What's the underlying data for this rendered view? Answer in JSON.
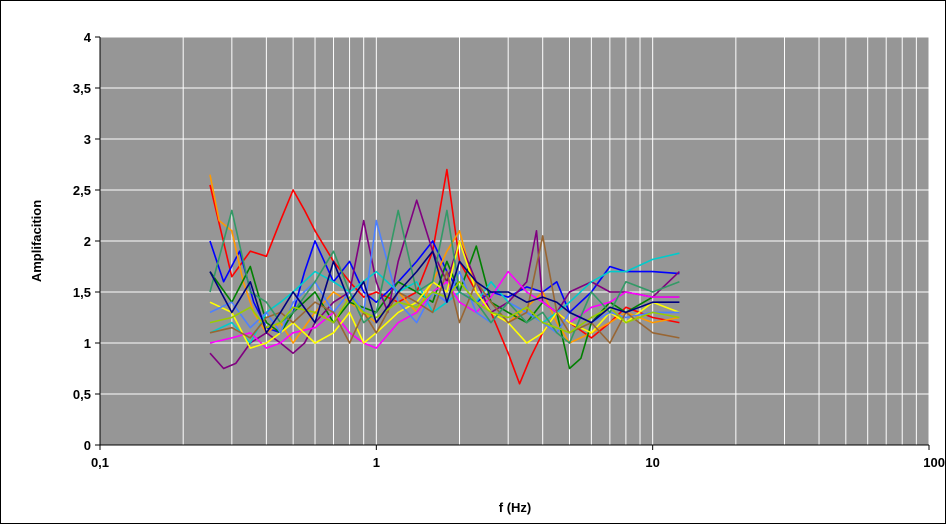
{
  "chart_data": {
    "type": "line",
    "title": "",
    "xlabel": "f (Hz)",
    "ylabel": "Amplifacition",
    "x_scale": "log",
    "xlim": [
      0.1,
      100
    ],
    "ylim": [
      0,
      4
    ],
    "x_ticks": [
      {
        "value": 0.1,
        "label": "0,1"
      },
      {
        "value": 1,
        "label": "1"
      },
      {
        "value": 10,
        "label": "10"
      },
      {
        "value": 100,
        "label": "100"
      }
    ],
    "y_ticks": [
      {
        "value": 0,
        "label": "0"
      },
      {
        "value": 0.5,
        "label": "0,5"
      },
      {
        "value": 1,
        "label": "1"
      },
      {
        "value": 1.5,
        "label": "1,5"
      },
      {
        "value": 2,
        "label": "2"
      },
      {
        "value": 2.5,
        "label": "2,5"
      },
      {
        "value": 3,
        "label": "3"
      },
      {
        "value": 3.5,
        "label": "3,5"
      },
      {
        "value": 4,
        "label": "4"
      }
    ],
    "grid": true,
    "plot_background": "#969696",
    "grid_color": "#ffffff",
    "legend": "none",
    "series": [
      {
        "color": "#ff0000",
        "x": [
          0.25,
          0.3,
          0.35,
          0.4,
          0.45,
          0.5,
          0.55,
          0.6,
          0.7,
          0.8,
          0.9,
          1,
          1.2,
          1.4,
          1.6,
          1.8,
          2,
          2.3,
          2.6,
          3,
          3.3,
          3.6,
          4,
          4.5,
          5,
          6,
          7,
          8,
          10,
          12.5
        ],
        "y": [
          2.55,
          1.65,
          1.9,
          1.85,
          2.2,
          2.5,
          2.3,
          2.1,
          1.8,
          1.6,
          1.45,
          1.5,
          1.4,
          1.5,
          1.9,
          2.7,
          1.8,
          1.5,
          1.3,
          0.9,
          0.6,
          0.85,
          1.1,
          1.3,
          1.2,
          1.05,
          1.2,
          1.35,
          1.25,
          1.2
        ]
      },
      {
        "color": "#0000ff",
        "x": [
          0.25,
          0.28,
          0.32,
          0.36,
          0.4,
          0.45,
          0.5,
          0.55,
          0.6,
          0.7,
          0.8,
          0.9,
          1,
          1.2,
          1.4,
          1.6,
          1.8,
          2,
          2.3,
          2.6,
          3,
          3.5,
          4,
          4.5,
          5,
          6,
          7,
          8,
          10,
          12.5
        ],
        "y": [
          2.0,
          1.6,
          1.9,
          1.4,
          1.15,
          1.1,
          1.3,
          1.7,
          2.0,
          1.6,
          1.8,
          1.5,
          1.4,
          1.6,
          1.8,
          2.0,
          1.7,
          1.5,
          1.4,
          1.5,
          1.45,
          1.55,
          1.5,
          1.6,
          1.3,
          1.5,
          1.75,
          1.7,
          1.7,
          1.68
        ]
      },
      {
        "color": "#ff9900",
        "x": [
          0.25,
          0.27,
          0.3,
          0.33,
          0.36,
          0.4,
          0.45,
          0.5,
          0.6,
          0.7,
          0.8,
          1,
          1.2,
          1.4,
          1.6,
          1.8,
          2,
          2.3,
          2.6,
          3,
          3.5,
          4,
          4.5,
          5,
          6,
          7,
          8,
          10,
          12.5
        ],
        "y": [
          2.65,
          2.2,
          2.1,
          1.6,
          1.3,
          1.1,
          1.2,
          1.0,
          1.3,
          1.5,
          1.4,
          1.2,
          1.5,
          1.3,
          1.6,
          1.9,
          2.1,
          1.5,
          1.3,
          1.2,
          1.35,
          1.5,
          1.2,
          1.0,
          1.1,
          1.2,
          1.3,
          1.2,
          1.25
        ]
      },
      {
        "color": "#008000",
        "x": [
          0.25,
          0.3,
          0.35,
          0.4,
          0.45,
          0.5,
          0.6,
          0.7,
          0.8,
          1,
          1.2,
          1.4,
          1.6,
          1.8,
          2,
          2.3,
          2.6,
          3,
          3.5,
          4,
          4.5,
          5,
          5.5,
          6,
          7,
          8,
          10,
          12.5
        ],
        "y": [
          1.7,
          1.4,
          1.75,
          1.2,
          1.1,
          1.3,
          1.5,
          1.2,
          1.4,
          1.3,
          1.6,
          1.5,
          1.4,
          1.8,
          1.5,
          1.95,
          1.4,
          1.3,
          1.2,
          1.4,
          1.3,
          0.75,
          0.85,
          1.2,
          1.4,
          1.3,
          1.45,
          1.45
        ]
      },
      {
        "color": "#800080",
        "x": [
          0.25,
          0.28,
          0.31,
          0.35,
          0.4,
          0.45,
          0.5,
          0.55,
          0.6,
          0.7,
          0.8,
          0.9,
          1,
          1.1,
          1.2,
          1.4,
          1.6,
          1.8,
          2,
          2.3,
          2.6,
          3,
          3.5,
          3.8,
          4,
          4.5,
          5,
          6,
          7,
          8,
          10,
          12.5
        ],
        "y": [
          0.9,
          0.75,
          0.8,
          1.0,
          1.1,
          1.0,
          0.9,
          1.0,
          1.2,
          1.4,
          1.5,
          2.2,
          1.6,
          1.3,
          1.8,
          2.4,
          1.9,
          1.6,
          2.0,
          1.6,
          1.3,
          1.4,
          1.6,
          2.1,
          1.4,
          1.3,
          1.5,
          1.6,
          1.5,
          1.5,
          1.45,
          1.7
        ]
      },
      {
        "color": "#00cccc",
        "x": [
          0.25,
          0.3,
          0.35,
          0.4,
          0.45,
          0.5,
          0.6,
          0.7,
          0.8,
          1,
          1.2,
          1.4,
          1.6,
          1.8,
          2,
          2.3,
          2.6,
          3,
          3.5,
          4,
          4.5,
          5,
          6,
          7,
          8,
          10,
          12.5
        ],
        "y": [
          1.1,
          1.2,
          1.0,
          1.3,
          1.4,
          1.5,
          1.7,
          1.6,
          1.5,
          1.7,
          1.5,
          1.6,
          1.3,
          1.4,
          1.5,
          1.4,
          1.6,
          1.4,
          1.3,
          1.2,
          1.3,
          1.4,
          1.6,
          1.7,
          1.7,
          1.82,
          1.88
        ]
      },
      {
        "color": "#ff00ff",
        "x": [
          0.25,
          0.3,
          0.35,
          0.4,
          0.45,
          0.5,
          0.6,
          0.7,
          0.8,
          0.9,
          1,
          1.2,
          1.4,
          1.6,
          1.8,
          2,
          2.3,
          2.6,
          3,
          3.5,
          4,
          4.5,
          5,
          6,
          7,
          8,
          10,
          12.5
        ],
        "y": [
          1.0,
          1.05,
          1.1,
          0.95,
          1.0,
          1.1,
          1.15,
          1.3,
          1.1,
          1.0,
          0.95,
          1.2,
          1.3,
          1.5,
          1.6,
          1.4,
          1.3,
          1.45,
          1.7,
          1.5,
          1.4,
          1.3,
          1.2,
          1.35,
          1.4,
          1.5,
          1.45,
          1.45
        ]
      },
      {
        "color": "#ffff00",
        "x": [
          0.25,
          0.3,
          0.35,
          0.4,
          0.45,
          0.5,
          0.6,
          0.7,
          0.8,
          0.9,
          1,
          1.2,
          1.4,
          1.6,
          1.8,
          2,
          2.3,
          2.6,
          3,
          3.5,
          4,
          4.5,
          5,
          6,
          7,
          8,
          10,
          12.5
        ],
        "y": [
          1.4,
          1.3,
          0.95,
          1.0,
          1.1,
          1.2,
          1.0,
          1.1,
          1.3,
          1.0,
          1.1,
          1.3,
          1.4,
          1.6,
          1.5,
          2.0,
          1.5,
          1.3,
          1.2,
          1.0,
          1.1,
          1.3,
          1.2,
          1.1,
          1.3,
          1.2,
          1.4,
          1.3
        ]
      },
      {
        "color": "#4d80ff",
        "x": [
          0.25,
          0.3,
          0.35,
          0.4,
          0.45,
          0.5,
          0.6,
          0.7,
          0.8,
          0.9,
          1,
          1.2,
          1.4,
          1.6,
          1.8,
          2,
          2.3,
          2.6,
          3,
          3.5,
          4,
          4.5,
          5,
          6,
          7,
          8,
          10,
          12.5
        ],
        "y": [
          1.3,
          1.4,
          1.15,
          1.3,
          1.1,
          1.4,
          1.6,
          1.3,
          1.5,
          1.3,
          2.2,
          1.4,
          1.2,
          1.5,
          1.4,
          1.7,
          1.3,
          1.2,
          1.4,
          1.3,
          1.2,
          1.1,
          1.3,
          1.2,
          1.3,
          1.25,
          1.3,
          1.3
        ]
      },
      {
        "color": "#996633",
        "x": [
          0.25,
          0.3,
          0.35,
          0.4,
          0.45,
          0.5,
          0.6,
          0.7,
          0.8,
          0.9,
          1,
          1.2,
          1.4,
          1.6,
          1.8,
          2,
          2.3,
          2.6,
          3,
          3.5,
          4,
          4.5,
          5,
          6,
          7,
          8,
          10,
          12.5
        ],
        "y": [
          1.1,
          1.15,
          1.05,
          1.25,
          1.3,
          1.2,
          1.4,
          1.3,
          1.0,
          1.3,
          1.1,
          1.5,
          1.4,
          1.3,
          1.7,
          1.2,
          1.6,
          1.4,
          1.2,
          1.3,
          2.05,
          1.3,
          1.1,
          1.2,
          1.0,
          1.3,
          1.1,
          1.05
        ]
      },
      {
        "color": "#339966",
        "x": [
          0.25,
          0.3,
          0.35,
          0.4,
          0.45,
          0.5,
          0.6,
          0.7,
          0.8,
          0.9,
          1,
          1.2,
          1.4,
          1.6,
          1.8,
          2,
          2.3,
          2.6,
          3,
          3.5,
          4,
          4.5,
          5,
          6,
          7,
          8,
          10,
          12.5
        ],
        "y": [
          1.5,
          2.3,
          1.5,
          1.4,
          1.2,
          1.3,
          1.6,
          1.9,
          1.5,
          1.2,
          1.3,
          2.3,
          1.5,
          1.6,
          2.3,
          1.5,
          1.4,
          1.2,
          1.4,
          1.2,
          1.3,
          1.1,
          1.0,
          1.5,
          1.3,
          1.6,
          1.5,
          1.6
        ]
      },
      {
        "color": "#99cc00",
        "x": [
          0.25,
          0.3,
          0.35,
          0.4,
          0.45,
          0.5,
          0.6,
          0.7,
          0.8,
          0.9,
          1,
          1.2,
          1.4,
          1.6,
          1.8,
          2,
          2.3,
          2.6,
          3,
          3.5,
          4,
          4.5,
          5,
          6,
          7,
          8,
          10,
          12.5
        ],
        "y": [
          1.2,
          1.25,
          1.35,
          1.15,
          1.2,
          1.35,
          1.3,
          1.2,
          1.45,
          1.3,
          1.25,
          1.4,
          1.35,
          1.5,
          1.45,
          1.6,
          1.4,
          1.3,
          1.25,
          1.35,
          1.2,
          1.15,
          1.1,
          1.25,
          1.35,
          1.2,
          1.3,
          1.25
        ]
      },
      {
        "color": "#000080",
        "x": [
          0.25,
          0.3,
          0.35,
          0.4,
          0.45,
          0.5,
          0.6,
          0.7,
          0.8,
          0.9,
          1,
          1.2,
          1.4,
          1.6,
          1.8,
          2,
          2.3,
          2.6,
          3,
          3.5,
          4,
          4.5,
          5,
          6,
          7,
          8,
          10,
          12.5
        ],
        "y": [
          1.7,
          1.3,
          1.6,
          1.1,
          1.3,
          1.5,
          1.2,
          1.8,
          1.4,
          1.6,
          1.2,
          1.5,
          1.7,
          1.9,
          1.4,
          1.8,
          1.6,
          1.5,
          1.5,
          1.4,
          1.45,
          1.4,
          1.3,
          1.2,
          1.35,
          1.3,
          1.4,
          1.4
        ]
      }
    ]
  }
}
